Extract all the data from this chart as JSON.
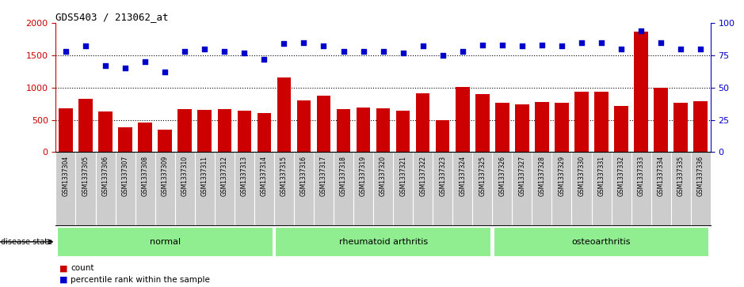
{
  "title": "GDS5403 / 213062_at",
  "samples": [
    "GSM1337304",
    "GSM1337305",
    "GSM1337306",
    "GSM1337307",
    "GSM1337308",
    "GSM1337309",
    "GSM1337310",
    "GSM1337311",
    "GSM1337312",
    "GSM1337313",
    "GSM1337314",
    "GSM1337315",
    "GSM1337316",
    "GSM1337317",
    "GSM1337318",
    "GSM1337319",
    "GSM1337320",
    "GSM1337321",
    "GSM1337322",
    "GSM1337323",
    "GSM1337324",
    "GSM1337325",
    "GSM1337326",
    "GSM1337327",
    "GSM1337328",
    "GSM1337329",
    "GSM1337330",
    "GSM1337331",
    "GSM1337332",
    "GSM1337333",
    "GSM1337334",
    "GSM1337335",
    "GSM1337336"
  ],
  "counts": [
    680,
    820,
    630,
    380,
    460,
    350,
    670,
    650,
    670,
    640,
    600,
    1150,
    800,
    870,
    670,
    690,
    680,
    640,
    910,
    490,
    1010,
    900,
    760,
    740,
    780,
    760,
    930,
    930,
    710,
    1870,
    1000,
    760,
    790
  ],
  "percentiles": [
    78,
    82,
    67,
    65,
    70,
    62,
    78,
    80,
    78,
    77,
    72,
    84,
    85,
    82,
    78,
    78,
    78,
    77,
    82,
    75,
    78,
    83,
    83,
    82,
    83,
    82,
    85,
    85,
    80,
    94,
    85,
    80,
    80
  ],
  "group_ranges": [
    {
      "label": "normal",
      "start": 0,
      "end": 10
    },
    {
      "label": "rheumatoid arthritis",
      "start": 11,
      "end": 21
    },
    {
      "label": "osteoarthritis",
      "start": 22,
      "end": 32
    }
  ],
  "bar_color": "#CC0000",
  "scatter_color": "#0000CC",
  "ylim_left": [
    0,
    2000
  ],
  "ylim_right": [
    0,
    100
  ],
  "yticks_left": [
    0,
    500,
    1000,
    1500,
    2000
  ],
  "yticks_right": [
    0,
    25,
    50,
    75,
    100
  ],
  "grid_values": [
    500,
    1000,
    1500
  ],
  "background_color": "#ffffff",
  "tick_area_color": "#cccccc",
  "green_color": "#90EE90"
}
